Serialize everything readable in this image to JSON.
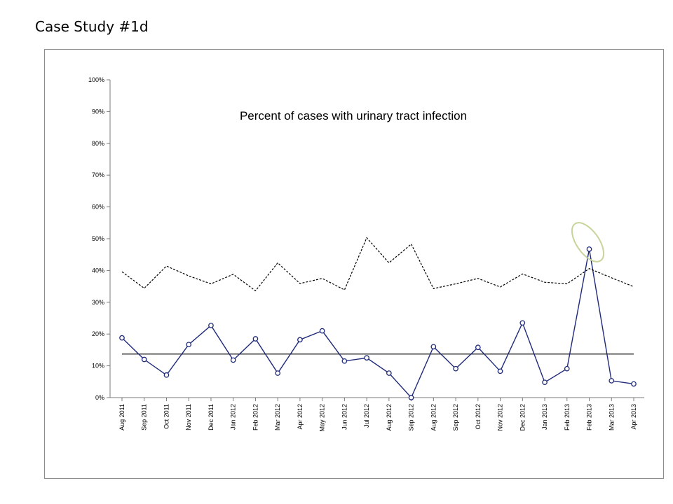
{
  "page": {
    "title": "Case Study #1d"
  },
  "chart_data": {
    "type": "line",
    "title": "Percent of cases with urinary tract infection",
    "xlabel": "",
    "ylabel": "",
    "ylim": [
      0,
      100
    ],
    "yticks": [
      "0%",
      "10%",
      "20%",
      "30%",
      "40%",
      "50%",
      "60%",
      "70%",
      "80%",
      "90%",
      "100%"
    ],
    "grid": false,
    "categories": [
      "Aug 2011",
      "Sep 2011",
      "Oct 2011",
      "Nov 2011",
      "Dec 2011",
      "Jan 2012",
      "Feb 2012",
      "Mar 2012",
      "Apr 2012",
      "May 2012",
      "Jun 2012",
      "Jul 2012",
      "Aug 2012",
      "Sep 2012",
      "Aug 2012",
      "Sep 2012",
      "Oct 2012",
      "Nov 2012",
      "Dec 2012",
      "Jan 2013",
      "Feb 2013",
      "Feb 2013",
      "Mar 2013",
      "Apr 2013"
    ],
    "series": [
      {
        "values": [
          18.8,
          12.0,
          7.1,
          16.7,
          22.7,
          11.8,
          18.5,
          7.7,
          18.2,
          21.0,
          11.5,
          12.5,
          7.7,
          0.0,
          16.0,
          9.1,
          15.8,
          8.3,
          23.5,
          4.8,
          9.1,
          46.7,
          5.3,
          4.3
        ],
        "style": "solid-markers",
        "color": "#1f2a7a"
      },
      {
        "values": [
          39.6,
          34.4,
          41.4,
          38.3,
          35.8,
          38.8,
          33.6,
          42.4,
          35.9,
          37.5,
          33.9,
          50.3,
          42.4,
          48.3,
          34.3,
          35.8,
          37.5,
          34.8,
          38.9,
          36.3,
          35.8,
          40.6,
          37.7,
          34.9
        ],
        "style": "dashed",
        "color": "#000000"
      }
    ],
    "center_line": 13.7,
    "highlight_index": 21,
    "highlight_color": "#c7d49a"
  }
}
